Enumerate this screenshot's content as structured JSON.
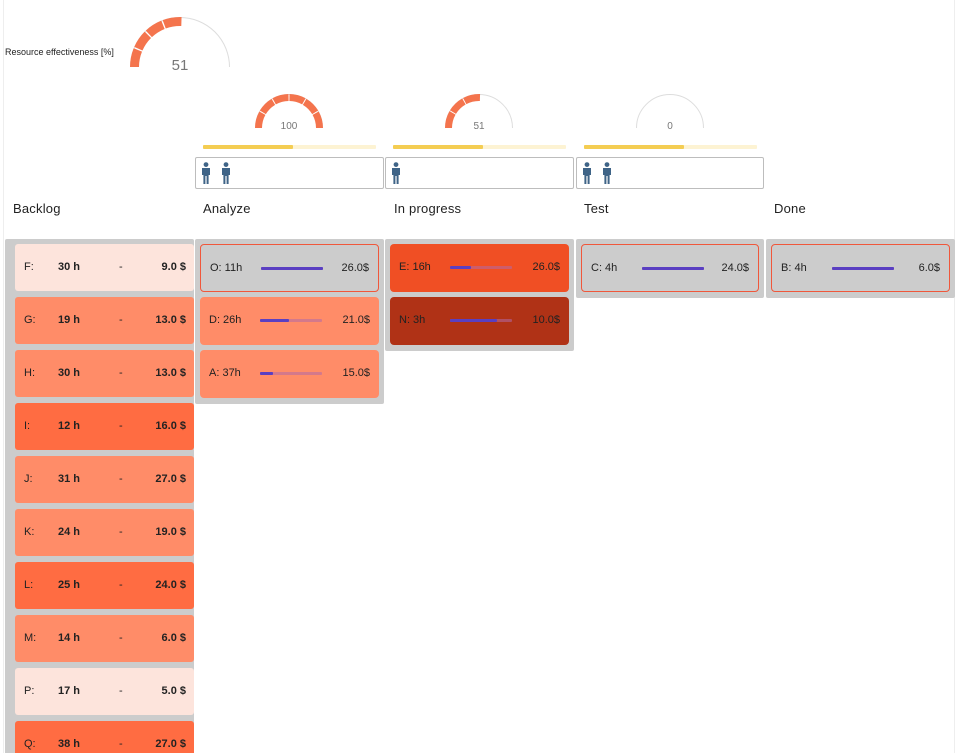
{
  "summary": {
    "effectiveness_label": "Resource effectiveness [%]",
    "effectiveness_value": "51",
    "effectiveness_fraction": 0.51,
    "gauge_color": "#f4744d"
  },
  "columns": [
    {
      "title": "Backlog"
    },
    {
      "title": "Analyze",
      "gauge_value": "100",
      "gauge_fraction": 1.0,
      "wip_fraction": 0.52,
      "workers": 2
    },
    {
      "title": "In progress",
      "gauge_value": "51",
      "gauge_fraction": 0.51,
      "wip_fraction": 0.52,
      "workers": 1
    },
    {
      "title": "Test",
      "gauge_value": "0",
      "gauge_fraction": 0.0,
      "wip_fraction": 0.58,
      "workers": 2
    },
    {
      "title": "Done"
    }
  ],
  "backlog": [
    {
      "id": "F:",
      "hours": "30 h",
      "sep": "-",
      "cost": "9.0 $",
      "color": "#fde4dc"
    },
    {
      "id": "G:",
      "hours": "19 h",
      "sep": "-",
      "cost": "13.0 $",
      "color": "#ff8c68"
    },
    {
      "id": "H:",
      "hours": "30 h",
      "sep": "-",
      "cost": "13.0 $",
      "color": "#ff8c68"
    },
    {
      "id": "I:",
      "hours": "12 h",
      "sep": "-",
      "cost": "16.0 $",
      "color": "#ff6c42"
    },
    {
      "id": "J:",
      "hours": "31 h",
      "sep": "-",
      "cost": "27.0 $",
      "color": "#ff8c68"
    },
    {
      "id": "K:",
      "hours": "24 h",
      "sep": "-",
      "cost": "19.0 $",
      "color": "#ff8c68"
    },
    {
      "id": "L:",
      "hours": "25 h",
      "sep": "-",
      "cost": "24.0 $",
      "color": "#ff6c42"
    },
    {
      "id": "M:",
      "hours": "14 h",
      "sep": "-",
      "cost": "6.0 $",
      "color": "#ff8c68"
    },
    {
      "id": "P:",
      "hours": "17 h",
      "sep": "-",
      "cost": "5.0 $",
      "color": "#fde4dc"
    },
    {
      "id": "Q:",
      "hours": "38 h",
      "sep": "-",
      "cost": "27.0 $",
      "color": "#ff6c42"
    }
  ],
  "analyze": [
    {
      "label": "O: 11h",
      "cost": "26.0$",
      "progress": 1.0,
      "color": "#cccccc",
      "outlined": true
    },
    {
      "label": "D: 26h",
      "cost": "21.0$",
      "progress": 0.47,
      "color": "#ff8c68",
      "outlined": false
    },
    {
      "label": "A: 37h",
      "cost": "15.0$",
      "progress": 0.21,
      "color": "#ff8c68",
      "outlined": false
    }
  ],
  "in_progress": [
    {
      "label": "E: 16h",
      "cost": "26.0$",
      "progress": 0.34,
      "color": "#f04f24",
      "outlined": false
    },
    {
      "label": "N: 3h",
      "cost": "10.0$",
      "progress": 0.76,
      "color": "#b03216",
      "outlined": false
    }
  ],
  "test": [
    {
      "label": "C: 4h",
      "cost": "24.0$",
      "progress": 1.0,
      "color": "#cccccc",
      "outlined": true
    }
  ],
  "done": [
    {
      "label": "B: 4h",
      "cost": "6.0$",
      "progress": 1.0,
      "color": "#cccccc",
      "outlined": true
    }
  ]
}
